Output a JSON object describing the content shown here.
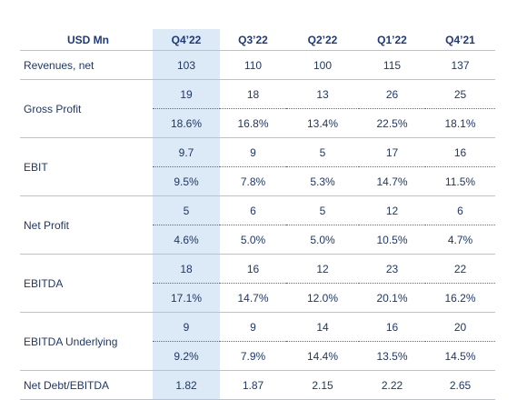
{
  "header": {
    "label": "USD Mn",
    "columns": [
      "Q4’22",
      "Q3’22",
      "Q2’22",
      "Q1’22",
      "Q4’21"
    ]
  },
  "rows": [
    {
      "label": "Revenues, net",
      "values": [
        "103",
        "110",
        "100",
        "115",
        "137"
      ]
    },
    {
      "label": "Gross Profit",
      "values": [
        "19",
        "18",
        "13",
        "26",
        "25"
      ],
      "margins": [
        "18.6%",
        "16.8%",
        "13.4%",
        "22.5%",
        "18.1%"
      ]
    },
    {
      "label": "EBIT",
      "values": [
        "9.7",
        "9",
        "5",
        "17",
        "16"
      ],
      "margins": [
        "9.5%",
        "7.8%",
        "5.3%",
        "14.7%",
        "11.5%"
      ]
    },
    {
      "label": "Net Profit",
      "values": [
        "5",
        "6",
        "5",
        "12",
        "6"
      ],
      "margins": [
        "4.6%",
        "5.0%",
        "5.0%",
        "10.5%",
        "4.7%"
      ]
    },
    {
      "label": "EBITDA",
      "values": [
        "18",
        "16",
        "12",
        "23",
        "22"
      ],
      "margins": [
        "17.1%",
        "14.7%",
        "12.0%",
        "20.1%",
        "16.2%"
      ]
    },
    {
      "label": "EBITDA Underlying",
      "values": [
        "9",
        "9",
        "14",
        "16",
        "20"
      ],
      "margins": [
        "9.2%",
        "7.9%",
        "14.4%",
        "13.5%",
        "14.5%"
      ]
    },
    {
      "label": "Net Debt/EBITDA",
      "values": [
        "1.82",
        "1.87",
        "2.15",
        "2.22",
        "2.65"
      ]
    }
  ]
}
